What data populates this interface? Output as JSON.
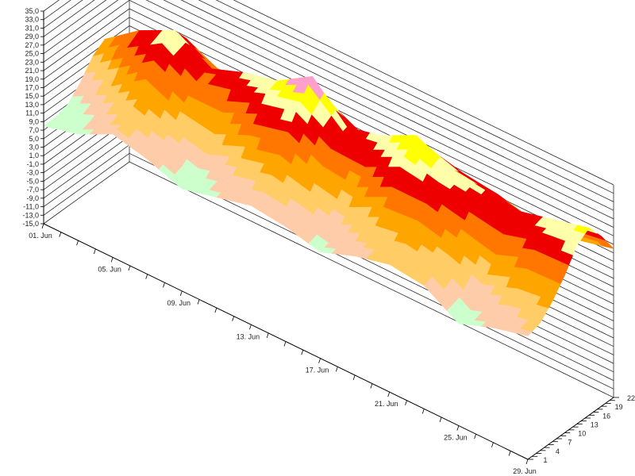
{
  "chart_data": {
    "type": "surface3d",
    "title": "",
    "xlabel": "",
    "ylabel": "",
    "zlabel": "",
    "x_ticks": [
      "01. Jun",
      "05. Jun",
      "09. Jun",
      "13. Jun",
      "17. Jun",
      "21. Jun",
      "25. Jun",
      "29. Jun"
    ],
    "y_ticks": [
      "1",
      "4",
      "7",
      "10",
      "13",
      "16",
      "19",
      "22"
    ],
    "z_ticks": [
      "35,0",
      "33,0",
      "31,0",
      "29,0",
      "27,0",
      "25,0",
      "23,0",
      "21,0",
      "19,0",
      "17,0",
      "15,0",
      "13,0",
      "11,0",
      "9,0",
      "7,0",
      "5,0",
      "3,0",
      "1,0",
      "-1,0",
      "-3,0",
      "-5,0",
      "-7,0",
      "-9,0",
      "-11,0",
      "-13,0",
      "-15,0"
    ],
    "z_range": [
      -15,
      35
    ],
    "grid": true,
    "color_scale": [
      {
        "threshold": 5,
        "color": "#2ecc1a"
      },
      {
        "threshold": 8,
        "color": "#33ff33"
      },
      {
        "threshold": 11,
        "color": "#ccffcc"
      },
      {
        "threshold": 14,
        "color": "#ffccaa"
      },
      {
        "threshold": 17,
        "color": "#ffcc66"
      },
      {
        "threshold": 20,
        "color": "#ffa500"
      },
      {
        "threshold": 23,
        "color": "#ff7700"
      },
      {
        "threshold": 26,
        "color": "#ee0000"
      },
      {
        "threshold": 28,
        "color": "#ffffaa"
      },
      {
        "threshold": 30,
        "color": "#ffff00"
      },
      {
        "threshold": 32,
        "color": "#ffa0cc"
      },
      {
        "threshold": 99,
        "color": "#ff00ff"
      }
    ],
    "days": [
      "01. Jun",
      "03. Jun",
      "05. Jun",
      "07. Jun",
      "09. Jun",
      "11. Jun",
      "13. Jun",
      "15. Jun",
      "17. Jun",
      "19. Jun",
      "21. Jun",
      "23. Jun",
      "25. Jun",
      "27. Jun",
      "29. Jun"
    ],
    "hours": [
      1,
      4,
      7,
      10,
      13,
      16,
      19,
      22
    ],
    "z_values": [
      [
        8,
        8,
        9,
        12,
        16,
        18,
        14,
        10
      ],
      [
        10,
        11,
        13,
        17,
        22,
        24,
        20,
        15
      ],
      [
        14,
        15,
        18,
        23,
        27,
        28,
        24,
        18
      ],
      [
        12,
        13,
        15,
        19,
        22,
        23,
        20,
        16
      ],
      [
        9,
        10,
        13,
        18,
        24,
        26,
        22,
        16
      ],
      [
        11,
        12,
        16,
        22,
        27,
        28,
        24,
        17
      ],
      [
        13,
        14,
        18,
        24,
        29,
        33,
        26,
        19
      ],
      [
        12,
        13,
        16,
        20,
        24,
        25,
        22,
        17
      ],
      [
        10,
        11,
        14,
        19,
        24,
        27,
        23,
        17
      ],
      [
        13,
        14,
        18,
        23,
        28,
        31,
        26,
        19
      ],
      [
        15,
        16,
        19,
        23,
        26,
        27,
        24,
        19
      ],
      [
        14,
        15,
        17,
        21,
        25,
        26,
        23,
        18
      ],
      [
        9,
        10,
        14,
        19,
        24,
        25,
        21,
        16
      ],
      [
        12,
        13,
        17,
        22,
        26,
        27,
        24,
        18
      ],
      [
        14,
        15,
        18,
        22,
        27,
        29,
        25,
        20
      ]
    ]
  }
}
